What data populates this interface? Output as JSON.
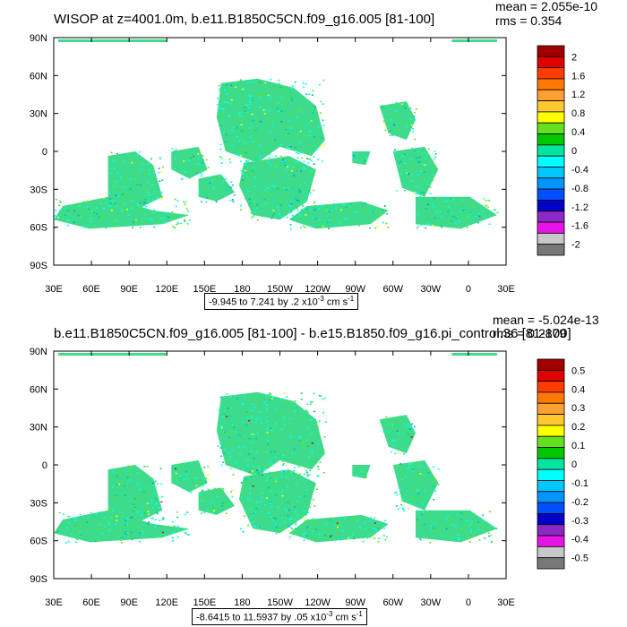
{
  "panels": [
    {
      "title": "WISOP at z=4001.0m, b.e11.B1850C5CN.f09_g16.005 [81-100]",
      "mean_text": "mean = 2.055e-10",
      "rms_text": "rms = 0.354",
      "range_main": "-9.945 to 7.241 by .2 x10",
      "range_exp": "-3",
      "range_unit": " cm s",
      "range_unit_exp": "-1",
      "colorbar_levels": [
        "2",
        "1.6",
        "1.2",
        "0.8",
        "0.4",
        "0",
        "-0.4",
        "-0.8",
        "-1.2",
        "-1.6",
        "-2"
      ]
    },
    {
      "title": "b.e11.B1850C5CN.f09_g16.005 [81-100] - b.e15.B1850.f09_g16.pi_control.36 [81-100]",
      "mean_text": "mean = -5.024e-13",
      "rms_text": "rms = 0.2879",
      "range_main": "-8.6415 to 11.5937 by .05 x10",
      "range_exp": "-3",
      "range_unit": " cm s",
      "range_unit_exp": "-1",
      "colorbar_levels": [
        "0.5",
        "0.4",
        "0.3",
        "0.2",
        "0.1",
        "0",
        "-0.1",
        "-0.2",
        "-0.3",
        "-0.4",
        "-0.5"
      ]
    }
  ],
  "axes": {
    "lat_labels": [
      "90N",
      "60N",
      "30N",
      "0",
      "30S",
      "60S",
      "90S"
    ],
    "lon_labels": [
      "30E",
      "60E",
      "90E",
      "120E",
      "150E",
      "180",
      "150W",
      "120W",
      "90W",
      "60W",
      "30W",
      "0",
      "30E"
    ]
  },
  "colorbar_colors": [
    "#a00000",
    "#e00000",
    "#ff3c00",
    "#ff7800",
    "#ffa030",
    "#ffc830",
    "#ffff00",
    "#64e01e",
    "#00c800",
    "#00e6a0",
    "#00ffff",
    "#00c8ff",
    "#0096ff",
    "#0050ff",
    "#0000c8",
    "#8c28c8",
    "#e614e6",
    "#c8c8c8",
    "#787878"
  ],
  "chart_data": [
    {
      "type": "heatmap",
      "title": "WISOP at z=4001.0m, b.e11.B1850C5CN.f09_g16.005 [81-100]",
      "xlabel": "",
      "ylabel": "",
      "x_ticks": [
        "30E",
        "60E",
        "90E",
        "120E",
        "150E",
        "180",
        "150W",
        "120W",
        "90W",
        "60W",
        "30W",
        "0",
        "30E"
      ],
      "y_ticks": [
        "90N",
        "60N",
        "30N",
        "0",
        "30S",
        "60S",
        "90S"
      ],
      "contour_levels": [
        2,
        1.6,
        1.2,
        0.8,
        0.4,
        0,
        -0.4,
        -0.8,
        -1.2,
        -1.6,
        -2
      ],
      "mean": 2.055e-10,
      "rms": 0.354,
      "min": -9.945,
      "max": 7.241,
      "interval": 0.2,
      "units": "x10^-3 cm s^-1"
    },
    {
      "type": "heatmap",
      "title": "b.e11.B1850C5CN.f09_g16.005 [81-100] - b.e15.B1850.f09_g16.pi_control.36 [81-100]",
      "xlabel": "",
      "ylabel": "",
      "x_ticks": [
        "30E",
        "60E",
        "90E",
        "120E",
        "150E",
        "180",
        "150W",
        "120W",
        "90W",
        "60W",
        "30W",
        "0",
        "30E"
      ],
      "y_ticks": [
        "90N",
        "60N",
        "30N",
        "0",
        "30S",
        "60S",
        "90S"
      ],
      "contour_levels": [
        0.5,
        0.4,
        0.3,
        0.2,
        0.1,
        0,
        -0.1,
        -0.2,
        -0.3,
        -0.4,
        -0.5
      ],
      "mean": -5.024e-13,
      "rms": 0.2879,
      "min": -8.6415,
      "max": 11.5937,
      "interval": 0.05,
      "units": "x10^-3 cm s^-1"
    }
  ]
}
